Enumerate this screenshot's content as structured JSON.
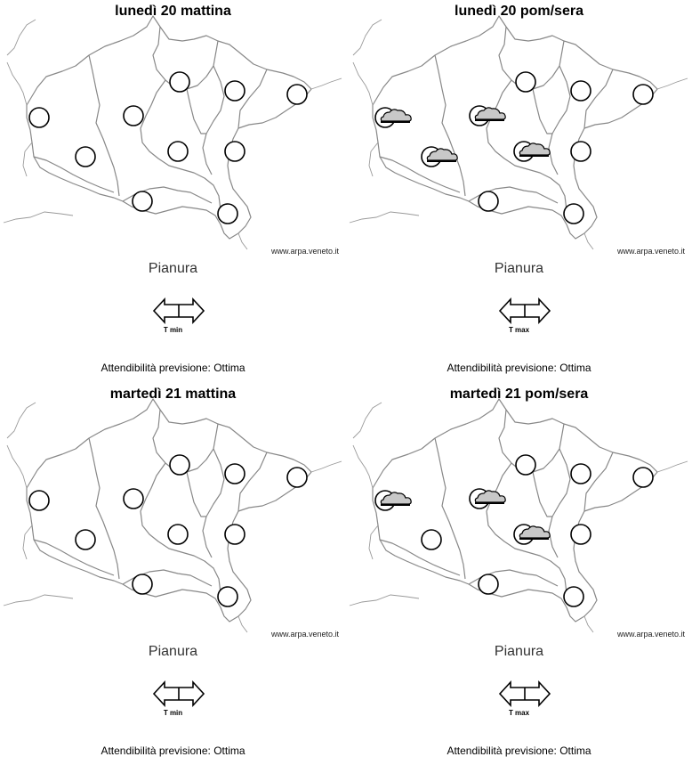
{
  "credit": "www.arpa.veneto.it",
  "panels": [
    {
      "title": "lunedì 20 mattina",
      "zone": "Pianura",
      "temp_label": "T min",
      "reliability": "Attendibilità previsione: Ottima",
      "stations": [
        "empty",
        "empty",
        "empty",
        "empty",
        "empty",
        "empty",
        "empty",
        "empty",
        "empty",
        "empty"
      ]
    },
    {
      "title": "lunedì 20 pom/sera",
      "zone": "Pianura",
      "temp_label": "T max",
      "reliability": "Attendibilità previsione: Ottima",
      "stations": [
        "cloud",
        "cloud",
        "cloud",
        "empty",
        "cloud",
        "empty",
        "empty",
        "empty",
        "empty",
        "empty"
      ]
    },
    {
      "title": "martedì 21 mattina",
      "zone": "Pianura",
      "temp_label": "T min",
      "reliability": "Attendibilità previsione: Ottima",
      "stations": [
        "empty",
        "empty",
        "empty",
        "empty",
        "empty",
        "empty",
        "empty",
        "empty",
        "empty",
        "empty"
      ]
    },
    {
      "title": "martedì 21 pom/sera",
      "zone": "Pianura",
      "temp_label": "T max",
      "reliability": "Attendibilità previsione: Ottima",
      "stations": [
        "cloud",
        "empty",
        "cloud",
        "empty",
        "cloud",
        "empty",
        "empty",
        "empty",
        "empty",
        "empty"
      ]
    }
  ]
}
